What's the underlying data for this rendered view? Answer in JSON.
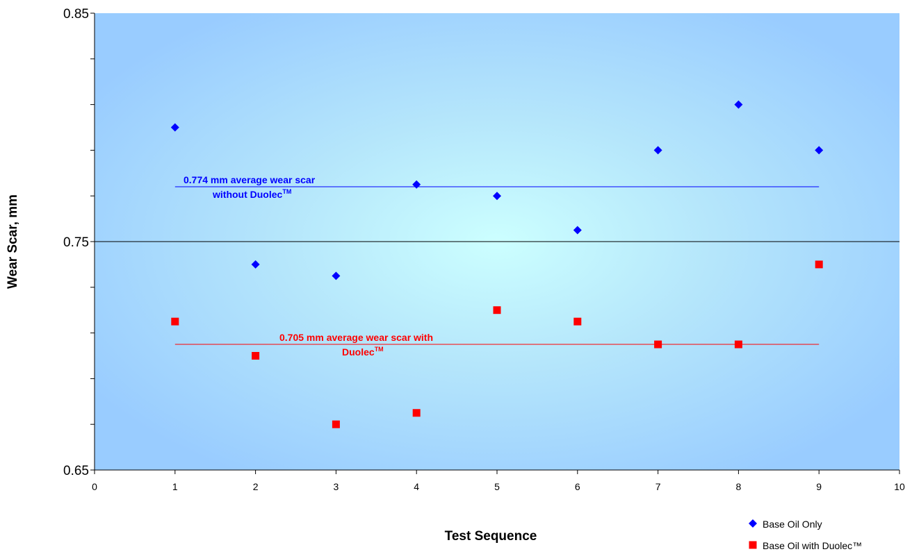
{
  "chart_data": {
    "type": "scatter",
    "title": "",
    "xlabel": "Test Sequence",
    "ylabel": "Wear Scar,  mm",
    "xlim": [
      0,
      10
    ],
    "ylim": [
      0.65,
      0.85
    ],
    "x_ticks": [
      "0",
      "1",
      "2",
      "3",
      "4",
      "5",
      "6",
      "7",
      "8",
      "9",
      "10"
    ],
    "y_ticks": [
      "0.65",
      "0.75",
      "0.85"
    ],
    "y_major_step": 0.1,
    "y_minor_step": 0.02,
    "grid": "horizontal line at 0.75",
    "legend_position": "bottom-right",
    "series": [
      {
        "name": "Base Oil Only",
        "marker": "diamond",
        "color": "#0000ff",
        "x": [
          1,
          2,
          3,
          4,
          5,
          6,
          7,
          8,
          9
        ],
        "y": [
          0.8,
          0.74,
          0.735,
          0.775,
          0.77,
          0.755,
          0.79,
          0.81,
          0.79
        ]
      },
      {
        "name": "Base Oil with Duolec™",
        "marker": "square",
        "color": "#ff0000",
        "x": [
          1,
          2,
          3,
          4,
          5,
          6,
          7,
          8,
          9
        ],
        "y": [
          0.715,
          0.7,
          0.67,
          0.675,
          0.72,
          0.715,
          0.705,
          0.705,
          0.74
        ]
      }
    ],
    "reference_lines": [
      {
        "value": 0.774,
        "x_range": [
          1,
          9
        ],
        "color": "#0000ff",
        "label_line1": "0.774 mm average wear scar",
        "label_line2": "without Duolec",
        "label_sup": "TM"
      },
      {
        "value": 0.705,
        "x_range": [
          1,
          9
        ],
        "color": "#ff0000",
        "label_line1": "0.705 mm average wear scar with",
        "label_line2": "Duolec",
        "label_sup": "TM"
      }
    ]
  }
}
